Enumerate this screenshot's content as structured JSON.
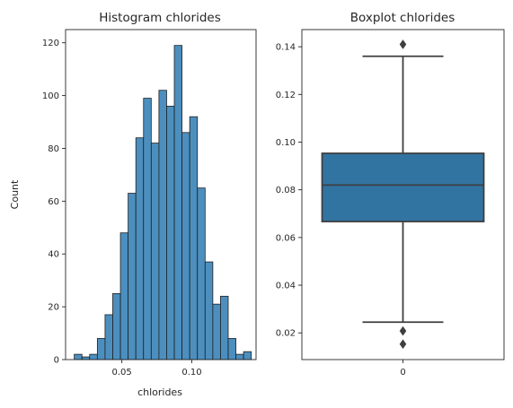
{
  "chart_data": [
    {
      "type": "bar",
      "subtype": "histogram",
      "title": "Histogram chlorides",
      "xlabel": "chlorides",
      "ylabel": "Count",
      "bin_start": 0.016,
      "bin_width": 0.0055,
      "counts": [
        2,
        1,
        2,
        8,
        17,
        25,
        48,
        63,
        84,
        99,
        82,
        102,
        96,
        119,
        86,
        92,
        65,
        37,
        21,
        24,
        8,
        2,
        3
      ],
      "xlim": [
        0.0098,
        0.1459
      ],
      "ylim": [
        0,
        125
      ],
      "xticks": [
        0.05,
        0.1
      ],
      "xtick_labels": [
        "0.05",
        "0.10"
      ],
      "yticks": [
        0,
        20,
        40,
        60,
        80,
        100,
        120
      ],
      "ytick_labels": [
        "0",
        "20",
        "40",
        "60",
        "80",
        "100",
        "120"
      ],
      "bar_color": "#4c8fbf",
      "edge_color": "#1f1f1f",
      "grid": false
    },
    {
      "type": "box",
      "title": "Boxplot chlorides",
      "categories": [
        "0"
      ],
      "q1": 0.0667,
      "median": 0.082,
      "q3": 0.0953,
      "whisker_low": 0.0245,
      "whisker_high": 0.136,
      "outliers": [
        0.141,
        0.0208,
        0.0153
      ],
      "ylim": [
        0.0088,
        0.1472
      ],
      "yticks": [
        0.02,
        0.04,
        0.06,
        0.08,
        0.1,
        0.12,
        0.14
      ],
      "ytick_labels": [
        "0.02",
        "0.04",
        "0.06",
        "0.08",
        "0.10",
        "0.12",
        "0.14"
      ],
      "box_color": "#3274a1",
      "line_color": "#3f3f3f",
      "grid": false
    }
  ]
}
